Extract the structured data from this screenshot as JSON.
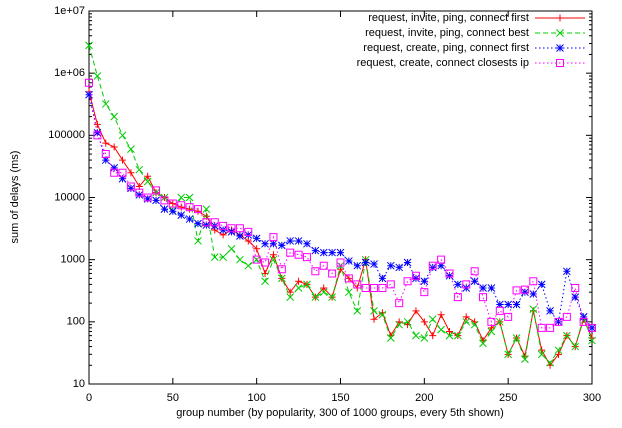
{
  "chart_data": {
    "type": "line",
    "xlabel": "group number (by popularity, 300 of 1000 groups, every 5th shown)",
    "ylabel": "sum of delays (ms)",
    "ylog": true,
    "legend": "top-right",
    "xlim": [
      0,
      300
    ],
    "xticks": [
      0,
      50,
      100,
      150,
      200,
      250,
      300
    ],
    "ylim": [
      10,
      10000000
    ],
    "yticks": [
      10,
      100,
      1000,
      10000,
      100000,
      {
        "value": 1000000,
        "label": "1e+06"
      },
      {
        "value": 10000000,
        "label": "1e+07"
      }
    ],
    "x": [
      0,
      5,
      10,
      15,
      20,
      25,
      30,
      35,
      40,
      45,
      50,
      55,
      60,
      65,
      70,
      75,
      80,
      85,
      90,
      95,
      100,
      105,
      110,
      115,
      120,
      125,
      130,
      135,
      140,
      145,
      150,
      155,
      160,
      165,
      170,
      175,
      180,
      185,
      190,
      195,
      200,
      205,
      210,
      215,
      220,
      225,
      230,
      235,
      240,
      245,
      250,
      255,
      260,
      265,
      270,
      275,
      280,
      285,
      290,
      295,
      300
    ],
    "series": [
      {
        "name": "request, invite, ping, connect first",
        "color": "#ff0000",
        "marker": "plus",
        "line_style": "solid",
        "values": [
          500000,
          150000,
          75000,
          65000,
          40000,
          25000,
          15000,
          22000,
          12000,
          10000,
          8000,
          7000,
          6500,
          6000,
          5000,
          3000,
          2500,
          3000,
          2500,
          2000,
          1500,
          600,
          1200,
          500,
          300,
          450,
          400,
          250,
          350,
          250,
          700,
          500,
          350,
          1000,
          110,
          140,
          60,
          100,
          90,
          150,
          100,
          60,
          130,
          70,
          60,
          120,
          100,
          50,
          80,
          100,
          30,
          55,
          28,
          150,
          35,
          20,
          30,
          60,
          40,
          110,
          55
        ]
      },
      {
        "name": "request, invite, ping, connect best",
        "color": "#00cc00",
        "marker": "cross",
        "line_style": "dashed",
        "values": [
          2800000,
          900000,
          320000,
          200000,
          100000,
          60000,
          28000,
          18000,
          12000,
          10000,
          6000,
          10000,
          10000,
          2000,
          6500,
          1100,
          1100,
          1500,
          1000,
          800,
          1000,
          450,
          1000,
          500,
          250,
          350,
          400,
          250,
          300,
          250,
          800,
          300,
          150,
          1000,
          150,
          130,
          55,
          90,
          100,
          60,
          55,
          110,
          75,
          60,
          60,
          100,
          90,
          45,
          70,
          100,
          30,
          55,
          25,
          160,
          30,
          22,
          35,
          60,
          40,
          120,
          50
        ]
      },
      {
        "name": "request, create, ping, connect first",
        "color": "#0000ff",
        "marker": "star",
        "line_style": "dotted",
        "values": [
          450000,
          110000,
          40000,
          30000,
          20000,
          14000,
          11000,
          9500,
          9000,
          6500,
          6000,
          5200,
          4500,
          3800,
          3600,
          3500,
          3000,
          2800,
          2400,
          2500,
          2200,
          1800,
          1800,
          1700,
          2000,
          2000,
          1800,
          1400,
          1300,
          1300,
          1300,
          950,
          800,
          900,
          850,
          500,
          800,
          750,
          900,
          500,
          450,
          750,
          800,
          550,
          400,
          350,
          450,
          350,
          350,
          190,
          190,
          190,
          300,
          280,
          400,
          150,
          100,
          650,
          250,
          120,
          80
        ]
      },
      {
        "name": "request, create, connect closests ip",
        "color": "#ff00ff",
        "marker": "square",
        "line_style": "dotted",
        "values": [
          700000,
          100000,
          50000,
          25000,
          25000,
          15000,
          12000,
          10000,
          13000,
          9000,
          8000,
          7500,
          7000,
          6500,
          4000,
          4000,
          3500,
          3200,
          3200,
          2800,
          1000,
          900,
          2300,
          700,
          1300,
          1200,
          1100,
          650,
          800,
          600,
          900,
          500,
          400,
          350,
          350,
          350,
          400,
          200,
          450,
          550,
          300,
          800,
          1000,
          600,
          250,
          400,
          650,
          250,
          100,
          150,
          120,
          320,
          330,
          450,
          80,
          80,
          100,
          120,
          350,
          100,
          80
        ]
      }
    ]
  }
}
